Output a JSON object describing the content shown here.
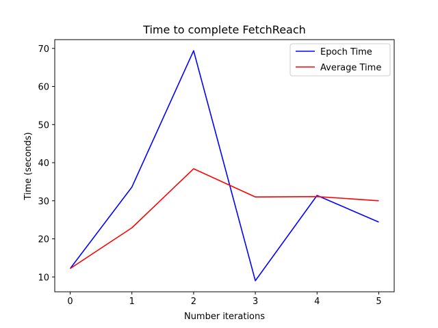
{
  "chart_data": {
    "type": "line",
    "title": "Time to complete FetchReach",
    "xlabel": "Number iterations",
    "ylabel": "Time (seconds)",
    "x": [
      0,
      1,
      2,
      3,
      4,
      5
    ],
    "xticks": [
      "0",
      "1",
      "2",
      "3",
      "4",
      "5"
    ],
    "yticks": [
      "10",
      "20",
      "30",
      "40",
      "50",
      "60",
      "70"
    ],
    "xlim": [
      -0.25,
      5.25
    ],
    "ylim": [
      6.1,
      72.3
    ],
    "grid": false,
    "legend_position": "top-right",
    "series": [
      {
        "name": "Epoch Time",
        "color": "#0000ff",
        "values": [
          12.2,
          33.6,
          69.4,
          9.0,
          31.4,
          24.4
        ]
      },
      {
        "name": "Average Time",
        "color": "#ff0000",
        "values": [
          12.2,
          22.9,
          38.4,
          31.0,
          31.1,
          30.0
        ]
      }
    ]
  }
}
